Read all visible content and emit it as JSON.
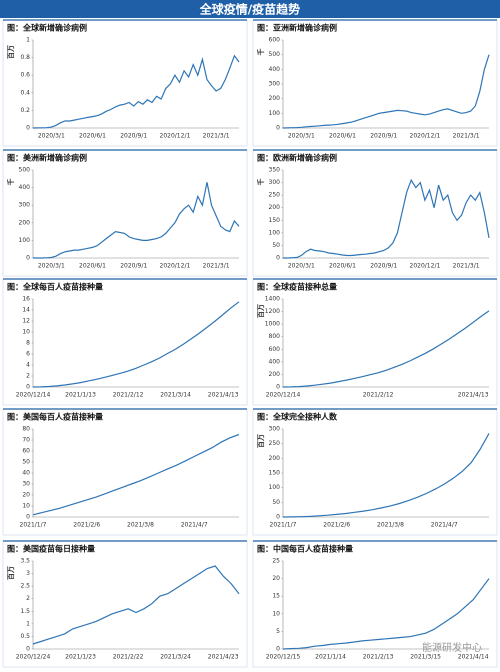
{
  "header": {
    "title": "全球疫情/疫苗趋势"
  },
  "watermark": "能源研发中心",
  "chart_data": [
    {
      "type": "line",
      "title": "图：全球新增确诊病例",
      "y_label": "百万",
      "color": "#2e75b6",
      "categories": [
        null,
        null,
        null,
        null,
        "2020/3/1",
        null,
        null,
        null,
        null,
        null,
        null,
        null,
        null,
        "2020/6/1",
        null,
        null,
        null,
        null,
        null,
        null,
        null,
        null,
        "2020/9/1",
        null,
        null,
        null,
        null,
        null,
        null,
        null,
        null,
        "2020/12/1",
        null,
        null,
        null,
        null,
        null,
        null,
        null,
        null,
        "2021/3/1",
        null,
        null,
        null,
        null,
        null
      ],
      "values": [
        0,
        0.001,
        0.002,
        0.003,
        0.01,
        0.03,
        0.06,
        0.08,
        0.08,
        0.09,
        0.1,
        0.11,
        0.12,
        0.13,
        0.14,
        0.16,
        0.19,
        0.21,
        0.24,
        0.26,
        0.27,
        0.29,
        0.25,
        0.3,
        0.27,
        0.32,
        0.29,
        0.36,
        0.33,
        0.45,
        0.5,
        0.6,
        0.52,
        0.65,
        0.58,
        0.72,
        0.6,
        0.78,
        0.55,
        0.48,
        0.42,
        0.45,
        0.55,
        0.68,
        0.82,
        0.75
      ],
      "ylim": [
        0,
        1
      ],
      "yticks": [
        0,
        0.2,
        0.4,
        0.6,
        0.8,
        1
      ]
    },
    {
      "type": "line",
      "title": "图：亚洲新增确诊病例",
      "y_label": "千",
      "color": "#2e75b6",
      "categories": [
        null,
        null,
        null,
        null,
        "2020/3/1",
        null,
        null,
        null,
        null,
        null,
        null,
        null,
        null,
        "2020/6/1",
        null,
        null,
        null,
        null,
        null,
        null,
        null,
        null,
        "2020/9/1",
        null,
        null,
        null,
        null,
        null,
        null,
        null,
        null,
        "2020/12/1",
        null,
        null,
        null,
        null,
        null,
        null,
        null,
        null,
        "2021/3/1",
        null,
        null,
        null,
        null,
        null
      ],
      "values": [
        0,
        1,
        2,
        3,
        5,
        8,
        10,
        12,
        15,
        18,
        20,
        22,
        25,
        30,
        35,
        40,
        50,
        60,
        70,
        80,
        90,
        100,
        105,
        110,
        115,
        120,
        118,
        115,
        105,
        100,
        95,
        90,
        95,
        105,
        115,
        125,
        130,
        120,
        110,
        100,
        105,
        115,
        150,
        250,
        400,
        500
      ],
      "ylim": [
        0,
        600
      ],
      "yticks": [
        0,
        100,
        200,
        300,
        400,
        500,
        600
      ]
    },
    {
      "type": "line",
      "title": "图：美洲新增确诊病例",
      "y_label": "千",
      "color": "#2e75b6",
      "categories": [
        null,
        null,
        null,
        null,
        "2020/3/1",
        null,
        null,
        null,
        null,
        null,
        null,
        null,
        null,
        "2020/6/1",
        null,
        null,
        null,
        null,
        null,
        null,
        null,
        null,
        "2020/9/1",
        null,
        null,
        null,
        null,
        null,
        null,
        null,
        null,
        "2020/12/1",
        null,
        null,
        null,
        null,
        null,
        null,
        null,
        null,
        "2021/3/1",
        null,
        null,
        null,
        null,
        null
      ],
      "values": [
        0,
        0,
        0,
        1,
        3,
        10,
        25,
        35,
        40,
        45,
        45,
        50,
        55,
        60,
        70,
        90,
        110,
        130,
        150,
        145,
        140,
        120,
        110,
        105,
        100,
        100,
        105,
        110,
        120,
        140,
        170,
        200,
        250,
        280,
        300,
        260,
        350,
        300,
        430,
        300,
        240,
        180,
        160,
        150,
        210,
        180
      ],
      "ylim": [
        0,
        500
      ],
      "yticks": [
        0,
        100,
        200,
        300,
        400,
        500
      ]
    },
    {
      "type": "line",
      "title": "图：欧洲新增确诊病例",
      "y_label": "千",
      "color": "#2e75b6",
      "categories": [
        null,
        null,
        null,
        null,
        "2020/3/1",
        null,
        null,
        null,
        null,
        null,
        null,
        null,
        null,
        "2020/6/1",
        null,
        null,
        null,
        null,
        null,
        null,
        null,
        null,
        "2020/9/1",
        null,
        null,
        null,
        null,
        null,
        null,
        null,
        null,
        "2020/12/1",
        null,
        null,
        null,
        null,
        null,
        null,
        null,
        null,
        "2021/3/1",
        null,
        null,
        null,
        null,
        null
      ],
      "values": [
        0,
        0,
        1,
        2,
        10,
        25,
        35,
        30,
        28,
        25,
        20,
        18,
        15,
        12,
        10,
        10,
        12,
        14,
        15,
        18,
        20,
        25,
        30,
        40,
        60,
        100,
        180,
        260,
        310,
        280,
        300,
        230,
        270,
        200,
        290,
        230,
        250,
        180,
        150,
        170,
        220,
        250,
        230,
        260,
        180,
        80
      ],
      "ylim": [
        0,
        350
      ],
      "yticks": [
        0,
        50,
        100,
        150,
        200,
        250,
        300,
        350
      ]
    },
    {
      "type": "line",
      "title": "图：全球每百人疫苗接种量",
      "color": "#2e75b6",
      "categories": [
        "2020/12/14",
        null,
        null,
        null,
        null,
        null,
        "2021/1/13",
        null,
        null,
        null,
        null,
        null,
        "2021/2/12",
        null,
        null,
        null,
        null,
        null,
        "2021/3/14",
        null,
        null,
        null,
        null,
        null,
        "2021/4/13",
        null,
        null
      ],
      "values": [
        0,
        0.02,
        0.09,
        0.2,
        0.37,
        0.57,
        0.8,
        1.1,
        1.4,
        1.75,
        2.1,
        2.5,
        2.9,
        3.4,
        4,
        4.6,
        5.3,
        6.1,
        6.9,
        7.8,
        8.8,
        9.8,
        10.9,
        12,
        13.2,
        14.4,
        15.5
      ],
      "ylim": [
        0,
        16
      ],
      "yticks": [
        0,
        2,
        4,
        6,
        8,
        10,
        12,
        14,
        16
      ]
    },
    {
      "type": "line",
      "title": "图：全球疫苗接种总量",
      "y_label": "百万",
      "color": "#2e75b6",
      "categories": [
        "2020/12/14",
        null,
        null,
        null,
        null,
        null,
        null,
        null,
        null,
        null,
        null,
        null,
        "2021/2/12",
        null,
        null,
        null,
        null,
        null,
        null,
        null,
        null,
        null,
        null,
        null,
        "2021/4/13",
        null,
        null
      ],
      "values": [
        0,
        2,
        7,
        16,
        29,
        44,
        62,
        86,
        109,
        137,
        164,
        195,
        226,
        265,
        312,
        359,
        413,
        476,
        538,
        608,
        686,
        764,
        850,
        936,
        1030,
        1123,
        1210
      ],
      "ylim": [
        0,
        1400
      ],
      "yticks": [
        0,
        200,
        400,
        600,
        800,
        1000,
        1200,
        1400
      ]
    },
    {
      "type": "line",
      "title": "图：美国每百人疫苗接种量",
      "color": "#2e75b6",
      "categories": [
        "2021/1/7",
        null,
        null,
        null,
        null,
        null,
        "2021/2/6",
        null,
        null,
        null,
        null,
        null,
        "2021/3/8",
        null,
        null,
        null,
        null,
        null,
        "2021/4/7",
        null,
        null,
        null,
        null,
        null
      ],
      "values": [
        2,
        4,
        6,
        8,
        10.5,
        13,
        15.5,
        18,
        21,
        24,
        27,
        30,
        33,
        36.5,
        40,
        43.5,
        47,
        51,
        55,
        59,
        63,
        68,
        72,
        75
      ],
      "ylim": [
        0,
        80
      ],
      "yticks": [
        0,
        10,
        20,
        30,
        40,
        50,
        60,
        70,
        80
      ]
    },
    {
      "type": "line",
      "title": "图：全球完全接种人数",
      "y_label": "百万",
      "color": "#2e75b6",
      "categories": [
        "2021/1/7",
        null,
        null,
        null,
        null,
        null,
        "2021/2/6",
        null,
        null,
        null,
        null,
        null,
        "2021/3/8",
        null,
        null,
        null,
        null,
        null,
        "2021/4/7",
        null,
        null,
        null,
        null,
        null
      ],
      "values": [
        0,
        0.5,
        1,
        2,
        4,
        6,
        9,
        12,
        16,
        20,
        25,
        31,
        38,
        46,
        56,
        67,
        80,
        95,
        112,
        132,
        155,
        185,
        230,
        285
      ],
      "ylim": [
        0,
        300
      ],
      "yticks": [
        0,
        50,
        100,
        150,
        200,
        250,
        300
      ]
    },
    {
      "type": "line",
      "title": "图：美国疫苗每日接种量",
      "y_label": "百万",
      "color": "#2e75b6",
      "categories": [
        "2020/12/24",
        null,
        null,
        null,
        null,
        null,
        "2021/1/23",
        null,
        null,
        null,
        null,
        null,
        "2021/2/22",
        null,
        null,
        null,
        null,
        null,
        "2021/3/24",
        null,
        null,
        null,
        null,
        null,
        "2021/4/23",
        null,
        null
      ],
      "values": [
        0.2,
        0.3,
        0.4,
        0.5,
        0.6,
        0.8,
        0.9,
        1,
        1.1,
        1.25,
        1.4,
        1.5,
        1.6,
        1.45,
        1.6,
        1.8,
        2.1,
        2.2,
        2.4,
        2.6,
        2.8,
        3,
        3.2,
        3.3,
        2.9,
        2.6,
        2.2
      ],
      "ylim": [
        0,
        3.5
      ],
      "yticks": [
        0,
        0.5,
        1,
        1.5,
        2,
        2.5,
        3,
        3.5
      ]
    },
    {
      "type": "line",
      "title": "图：中国每百人疫苗接种量",
      "color": "#2e75b6",
      "categories": [
        "2020/12/15",
        null,
        null,
        null,
        null,
        null,
        "2021/1/14",
        null,
        null,
        null,
        null,
        null,
        "2021/2/13",
        null,
        null,
        null,
        null,
        null,
        "2021/3/15",
        null,
        null,
        null,
        null,
        null,
        "2021/4/14",
        null,
        null
      ],
      "values": [
        0,
        0.1,
        0.2,
        0.4,
        0.8,
        1,
        1.3,
        1.5,
        1.7,
        2,
        2.3,
        2.5,
        2.7,
        2.9,
        3.1,
        3.3,
        3.5,
        4,
        4.5,
        5.5,
        7,
        8.5,
        10,
        12,
        14,
        17,
        20
      ],
      "ylim": [
        0,
        25
      ],
      "yticks": [
        0,
        5,
        10,
        15,
        20,
        25
      ]
    }
  ]
}
